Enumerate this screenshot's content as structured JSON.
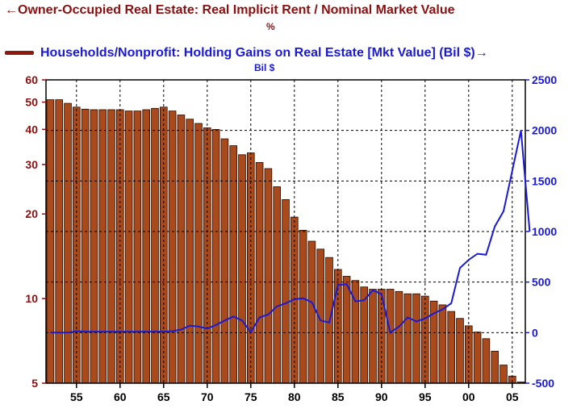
{
  "chart_data": {
    "type": "bar+line",
    "title_left": "←Owner-Occupied Real Estate: Real Implicit Rent / Nominal Market Value",
    "unit_left": "%",
    "title_right": "Households/Nonprofit: Holding Gains on Real Estate [Mkt Value] (Bil $)→",
    "unit_right": "Bil $",
    "left_axis": {
      "scale": "log",
      "range": [
        5,
        60
      ],
      "ticks": [
        "5",
        "10",
        "20",
        "30",
        "40",
        "50",
        "60"
      ]
    },
    "right_axis": {
      "scale": "linear",
      "range": [
        -500,
        2500
      ],
      "ticks": [
        "-500",
        "0",
        "500",
        "1000",
        "1500",
        "2000",
        "2500"
      ]
    },
    "x_axis": {
      "range": [
        1951.5,
        2006.5
      ],
      "ticks": [
        "55",
        "60",
        "65",
        "70",
        "75",
        "80",
        "85",
        "90",
        "95",
        "00",
        "05"
      ]
    },
    "bar_series": {
      "name": "Owner-Occupied Real Estate: Real Implicit Rent / Nominal Market Value",
      "color": "#a94a1c",
      "years": [
        1952,
        1953,
        1954,
        1955,
        1956,
        1957,
        1958,
        1959,
        1960,
        1961,
        1962,
        1963,
        1964,
        1965,
        1966,
        1967,
        1968,
        1969,
        1970,
        1971,
        1972,
        1973,
        1974,
        1975,
        1976,
        1977,
        1978,
        1979,
        1980,
        1981,
        1982,
        1983,
        1984,
        1985,
        1986,
        1987,
        1988,
        1989,
        1990,
        1991,
        1992,
        1993,
        1994,
        1995,
        1996,
        1997,
        1998,
        1999,
        2000,
        2001,
        2002,
        2003,
        2004,
        2005,
        2006
      ],
      "values": [
        51,
        51,
        49.5,
        48,
        47.2,
        47,
        47,
        47,
        47,
        46.5,
        46.5,
        47,
        47.5,
        48,
        46.5,
        45,
        43.5,
        42,
        40.5,
        40,
        37,
        35,
        32.5,
        33,
        30.5,
        29,
        25,
        22.5,
        19.5,
        17.5,
        16,
        15,
        14,
        12.7,
        12,
        11.6,
        11,
        10.8,
        10.8,
        10.8,
        10.6,
        10.4,
        10.4,
        10.2,
        9.8,
        9.5,
        9,
        8.5,
        8,
        7.6,
        7.2,
        6.5,
        5.8,
        5.3,
        5.05
      ]
    },
    "line_series": {
      "name": "Households/Nonprofit: Holding Gains on Real Estate [Mkt Value] (Bil $)",
      "color": "#1a1ad4",
      "points": [
        [
          1952,
          0
        ],
        [
          1953,
          0
        ],
        [
          1954,
          0
        ],
        [
          1955,
          15
        ],
        [
          1956,
          10
        ],
        [
          1957,
          10
        ],
        [
          1958,
          10
        ],
        [
          1959,
          10
        ],
        [
          1960,
          10
        ],
        [
          1961,
          10
        ],
        [
          1962,
          10
        ],
        [
          1963,
          10
        ],
        [
          1964,
          10
        ],
        [
          1965,
          10
        ],
        [
          1966,
          15
        ],
        [
          1967,
          30
        ],
        [
          1968,
          70
        ],
        [
          1969,
          60
        ],
        [
          1970,
          40
        ],
        [
          1971,
          75
        ],
        [
          1972,
          120
        ],
        [
          1973,
          160
        ],
        [
          1974,
          120
        ],
        [
          1975,
          5
        ],
        [
          1976,
          150
        ],
        [
          1977,
          180
        ],
        [
          1978,
          260
        ],
        [
          1979,
          290
        ],
        [
          1980,
          330
        ],
        [
          1981,
          340
        ],
        [
          1982,
          300
        ],
        [
          1983,
          120
        ],
        [
          1984,
          100
        ],
        [
          1985,
          470
        ],
        [
          1986,
          480
        ],
        [
          1987,
          310
        ],
        [
          1988,
          320
        ],
        [
          1989,
          420
        ],
        [
          1990,
          380
        ],
        [
          1991,
          0
        ],
        [
          1992,
          60
        ],
        [
          1993,
          150
        ],
        [
          1994,
          110
        ],
        [
          1995,
          140
        ],
        [
          1996,
          190
        ],
        [
          1997,
          230
        ],
        [
          1998,
          290
        ],
        [
          1999,
          640
        ],
        [
          2000,
          720
        ],
        [
          2001,
          780
        ],
        [
          2002,
          770
        ],
        [
          2003,
          1050
        ],
        [
          2004,
          1200
        ],
        [
          2005,
          1600
        ],
        [
          2006,
          2000
        ],
        [
          2007,
          1000
        ]
      ]
    },
    "grid": "dashed"
  }
}
